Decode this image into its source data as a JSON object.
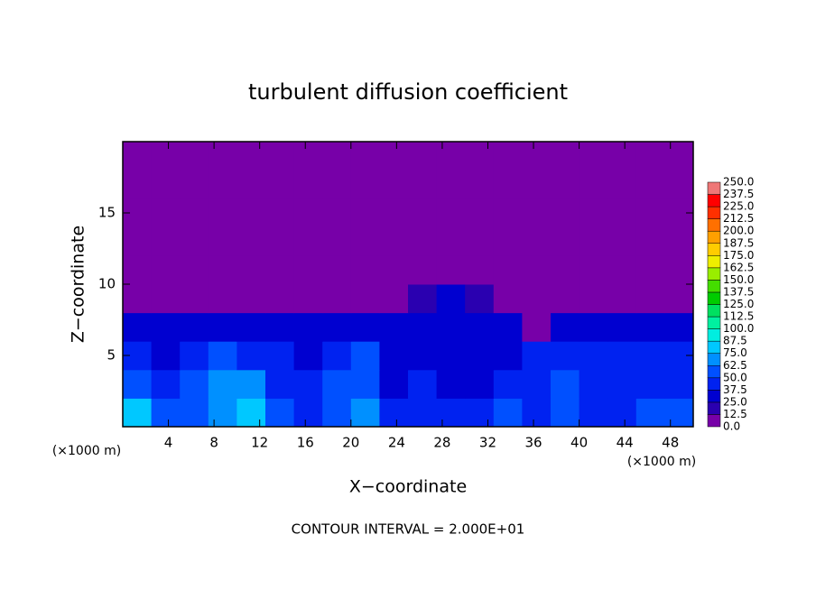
{
  "chart_data": {
    "type": "heatmap",
    "title": "turbulent diffusion coefficient",
    "x_label": "X−coordinate",
    "y_label": "Z−coordinate",
    "x_unit": "(×1000 m)",
    "y_unit": "(×1000 m)",
    "footnote": "CONTOUR INTERVAL = 2.000E+01",
    "xlim": [
      0,
      50
    ],
    "ylim": [
      0,
      20
    ],
    "xticks": [
      4,
      8,
      12,
      16,
      20,
      24,
      28,
      32,
      36,
      40,
      44,
      48
    ],
    "yticks": [
      5,
      10,
      15
    ],
    "x": [
      1.25,
      3.75,
      6.25,
      8.75,
      11.25,
      13.75,
      16.25,
      18.75,
      21.25,
      23.75,
      26.25,
      28.75,
      31.25,
      33.75,
      36.25,
      38.75,
      41.25,
      43.75,
      46.25,
      48.75
    ],
    "y": [
      1,
      3,
      5,
      7,
      9,
      11,
      13,
      15,
      17,
      19
    ],
    "z": [
      [
        75,
        60,
        55,
        70,
        80,
        60,
        45,
        55,
        65,
        40,
        45,
        40,
        45,
        50,
        40,
        55,
        45,
        40,
        50,
        60
      ],
      [
        50,
        45,
        55,
        65,
        70,
        45,
        40,
        55,
        60,
        35,
        40,
        35,
        35,
        40,
        45,
        50,
        45,
        45,
        40,
        45
      ],
      [
        40,
        35,
        40,
        50,
        45,
        40,
        35,
        45,
        50,
        35,
        35,
        35,
        35,
        35,
        40,
        45,
        40,
        40,
        45,
        45
      ],
      [
        35,
        30,
        25,
        30,
        30,
        25,
        30,
        30,
        35,
        30,
        30,
        35,
        30,
        25,
        10,
        25,
        25,
        30,
        35,
        35
      ],
      [
        0,
        0,
        0,
        0,
        0,
        0,
        0,
        0,
        0,
        0,
        20,
        25,
        20,
        5,
        0,
        0,
        0,
        0,
        0,
        0
      ],
      [
        0,
        0,
        0,
        0,
        0,
        0,
        0,
        0,
        0,
        0,
        0,
        0,
        0,
        0,
        0,
        0,
        0,
        0,
        0,
        0
      ],
      [
        0,
        0,
        0,
        0,
        0,
        0,
        0,
        0,
        0,
        0,
        0,
        0,
        0,
        0,
        0,
        0,
        0,
        0,
        0,
        0
      ],
      [
        0,
        0,
        0,
        0,
        0,
        0,
        0,
        0,
        0,
        0,
        0,
        0,
        0,
        0,
        0,
        0,
        0,
        0,
        0,
        0
      ],
      [
        0,
        0,
        0,
        0,
        0,
        0,
        0,
        0,
        0,
        0,
        0,
        0,
        0,
        0,
        0,
        0,
        0,
        0,
        0,
        0
      ],
      [
        0,
        0,
        0,
        0,
        0,
        0,
        0,
        0,
        0,
        0,
        0,
        0,
        0,
        0,
        0,
        0,
        0,
        0,
        0,
        0
      ]
    ],
    "levels": [
      {
        "value": 0,
        "label": "0.0"
      },
      {
        "value": 12.5,
        "label": "12.5"
      },
      {
        "value": 25,
        "label": "25.0"
      },
      {
        "value": 37.5,
        "label": "37.5"
      },
      {
        "value": 50,
        "label": "50.0"
      },
      {
        "value": 62.5,
        "label": "62.5"
      },
      {
        "value": 75,
        "label": "75.0"
      },
      {
        "value": 87.5,
        "label": "87.5"
      },
      {
        "value": 100,
        "label": "100.0"
      },
      {
        "value": 112.5,
        "label": "112.5"
      },
      {
        "value": 125,
        "label": "125.0"
      },
      {
        "value": 137.5,
        "label": "137.5"
      },
      {
        "value": 150,
        "label": "150.0"
      },
      {
        "value": 162.5,
        "label": "162.5"
      },
      {
        "value": 175,
        "label": "175.0"
      },
      {
        "value": 187.5,
        "label": "187.5"
      },
      {
        "value": 200,
        "label": "200.0"
      },
      {
        "value": 212.5,
        "label": "212.5"
      },
      {
        "value": 225,
        "label": "225.0"
      },
      {
        "value": 237.5,
        "label": "237.5"
      },
      {
        "value": 250,
        "label": "250.0"
      }
    ],
    "colors": [
      "#7700a8",
      "#2a00b0",
      "#0000d0",
      "#0022f0",
      "#0050ff",
      "#0090ff",
      "#00c8ff",
      "#00eee0",
      "#00f0a0",
      "#00e060",
      "#00cc00",
      "#44dd00",
      "#99ee00",
      "#eeee00",
      "#ffcc00",
      "#ffa000",
      "#ff7000",
      "#ff3000",
      "#ff0000",
      "#ee7777"
    ]
  }
}
